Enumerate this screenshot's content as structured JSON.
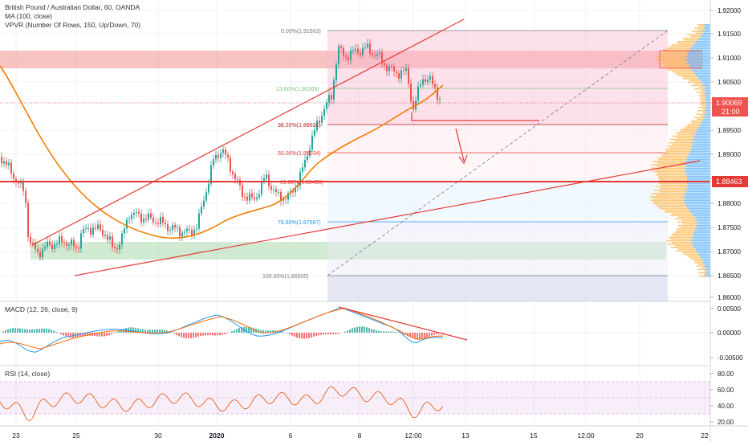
{
  "header": {
    "symbol_line": "British Pound / Australian Dollar, 60, OANDA",
    "ma_line": "MA (100, close)",
    "vpvr_line": "VPVR (Number Of Rows, 150, Up/Down, 70)"
  },
  "price_axis": {
    "ticks": [
      "1.92000",
      "1.91500",
      "1.91000",
      "1.90500",
      "1.90000",
      "1.89500",
      "1.89000",
      "1.88500",
      "1.88000",
      "1.87500",
      "1.87000",
      "1.86500",
      "1.86000"
    ],
    "current_price": "1.90069",
    "countdown": "21:00",
    "level_label": "1.88463"
  },
  "fibonacci": {
    "levels": [
      {
        "label": "0.00%(1.91563)",
        "color": "#787b86"
      },
      {
        "label": "23.60%(1.90369)",
        "color": "#81c784"
      },
      {
        "label": "38.20%(1.89631)",
        "color": "#b71c1c"
      },
      {
        "label": "50.00%(1.89034)",
        "color": "#e53935"
      },
      {
        "label": "61.80%(1.88436)",
        "color": "#e53935"
      },
      {
        "label": "78.60%(1.87587)",
        "color": "#2196f3"
      },
      {
        "label": "100.00%(1.86505)",
        "color": "#787b86"
      }
    ]
  },
  "macd": {
    "legend": "MACD (12, 26, close, 9)",
    "ticks": [
      "0.00500",
      "0.00000",
      "-0.00500"
    ]
  },
  "rsi": {
    "legend": "RSI (14, close)",
    "ticks": [
      "80.00",
      "60.00",
      "40.00",
      "20.00"
    ]
  },
  "time_axis": {
    "labels": [
      "23",
      "25",
      "30",
      "2020",
      "6",
      "8",
      "12:00",
      "13",
      "15",
      "12:00",
      "20",
      "22"
    ]
  },
  "colors": {
    "resistance_zone": "#ef5350",
    "support_zone": "#66bb6a",
    "ma_line": "#f57c00",
    "key_level": "#e53935",
    "candle_up": "#26a69a",
    "candle_down": "#ef5350",
    "vp_up": "#ffb74d",
    "vp_down": "#64b5f6"
  }
}
